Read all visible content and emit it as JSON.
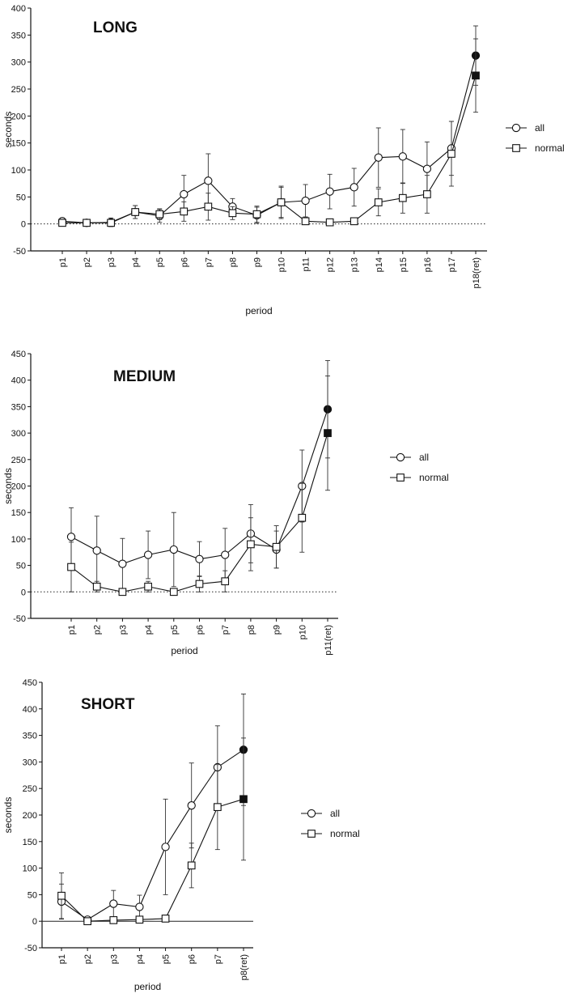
{
  "chart_data": [
    {
      "type": "line",
      "title": "LONG",
      "xlabel": "period",
      "ylabel": "seconds",
      "ylim": [
        -50,
        400
      ],
      "yticks": [
        -50,
        0,
        50,
        100,
        150,
        200,
        250,
        300,
        350,
        400
      ],
      "categories": [
        "p1",
        "p2",
        "p3",
        "p4",
        "p5",
        "p6",
        "p7",
        "p8",
        "p9",
        "p10",
        "p11",
        "p12",
        "p13",
        "p14",
        "p15",
        "p16",
        "p17",
        "p18(ret)"
      ],
      "zero_line": "dotted",
      "legend": "right",
      "series": [
        {
          "name": "all",
          "marker": "circle",
          "values": [
            5,
            2,
            3,
            22,
            15,
            55,
            80,
            32,
            16,
            40,
            43,
            60,
            68,
            123,
            125,
            102,
            140,
            312
          ],
          "err": [
            6,
            2,
            8,
            12,
            12,
            35,
            50,
            15,
            15,
            28,
            30,
            32,
            35,
            55,
            50,
            50,
            50,
            55
          ]
        },
        {
          "name": "normal",
          "marker": "square",
          "values": [
            2,
            2,
            2,
            22,
            18,
            23,
            32,
            20,
            18,
            40,
            5,
            3,
            5,
            40,
            48,
            55,
            130,
            275
          ],
          "err": [
            3,
            2,
            4,
            12,
            10,
            18,
            25,
            12,
            15,
            30,
            5,
            4,
            5,
            25,
            28,
            35,
            60,
            68
          ]
        }
      ]
    },
    {
      "type": "line",
      "title": "MEDIUM",
      "xlabel": "period",
      "ylabel": "seconds",
      "ylim": [
        -50,
        450
      ],
      "yticks": [
        -50,
        0,
        50,
        100,
        150,
        200,
        250,
        300,
        350,
        400,
        450
      ],
      "categories": [
        "p1",
        "p2",
        "p3",
        "p4",
        "p5",
        "p6",
        "p7",
        "p8",
        "p9",
        "p10",
        "p11(ret)"
      ],
      "zero_line": "dotted",
      "legend": "right",
      "series": [
        {
          "name": "all",
          "marker": "circle",
          "values": [
            104,
            78,
            53,
            70,
            80,
            62,
            70,
            110,
            80,
            200,
            345
          ],
          "err": [
            55,
            65,
            48,
            45,
            70,
            33,
            50,
            55,
            35,
            68,
            92
          ]
        },
        {
          "name": "normal",
          "marker": "square",
          "values": [
            47,
            10,
            0,
            10,
            0,
            15,
            20,
            90,
            85,
            140,
            300
          ],
          "err": [
            47,
            10,
            5,
            10,
            5,
            15,
            20,
            50,
            40,
            65,
            108
          ]
        }
      ]
    },
    {
      "type": "line",
      "title": "SHORT",
      "xlabel": "period",
      "ylabel": "seconds",
      "ylim": [
        -50,
        450
      ],
      "yticks": [
        -50,
        0,
        50,
        100,
        150,
        200,
        250,
        300,
        350,
        400,
        450
      ],
      "categories": [
        "p1",
        "p2",
        "p3",
        "p4",
        "p5",
        "p6",
        "p7",
        "p8(ret)"
      ],
      "zero_line": "solid",
      "legend": "right",
      "series": [
        {
          "name": "all",
          "marker": "circle",
          "values": [
            37,
            3,
            33,
            27,
            140,
            218,
            290,
            323
          ],
          "err": [
            33,
            3,
            25,
            22,
            90,
            80,
            78,
            105
          ]
        },
        {
          "name": "normal",
          "marker": "square",
          "values": [
            48,
            0,
            2,
            3,
            5,
            105,
            215,
            230
          ],
          "err": [
            43,
            2,
            5,
            5,
            5,
            42,
            80,
            115
          ]
        }
      ]
    }
  ]
}
